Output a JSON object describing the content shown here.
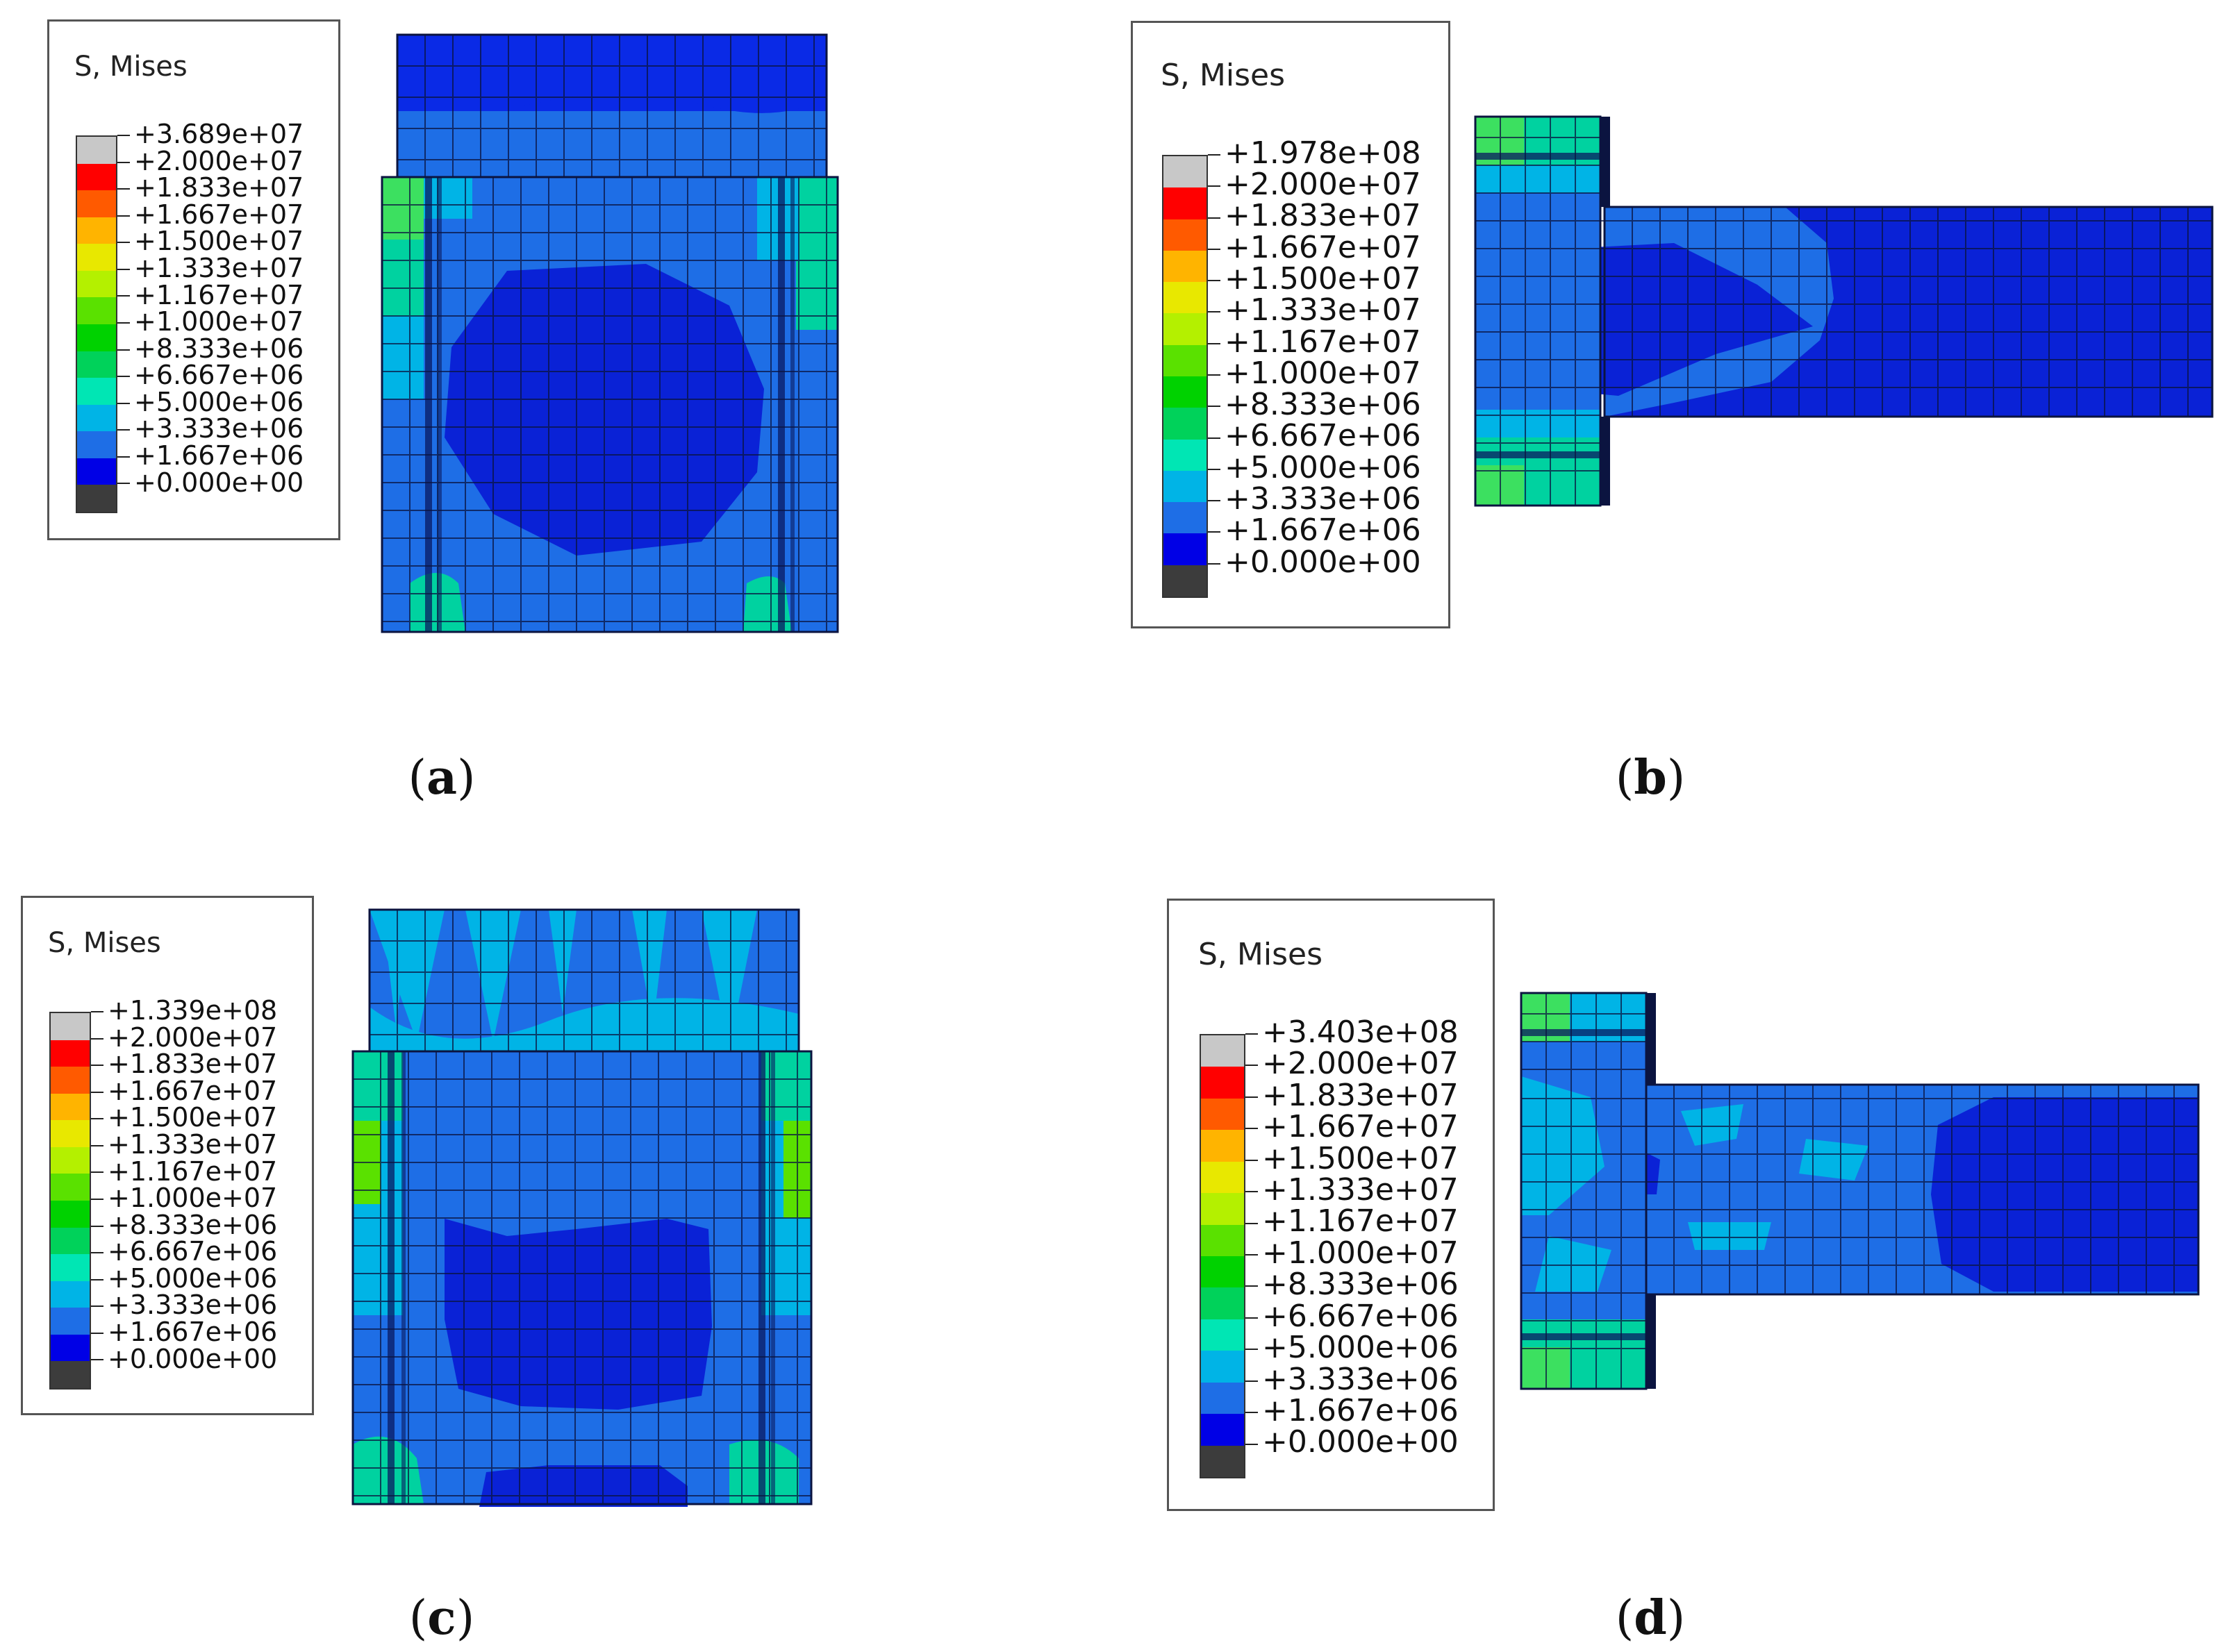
{
  "legend_title": "S, Mises",
  "colorbar_colors": [
    "#c8c8c8",
    "#ff0000",
    "#ff5a00",
    "#ffb400",
    "#e8e800",
    "#b4f000",
    "#5ae100",
    "#00d200",
    "#00d25a",
    "#00e6b4",
    "#00b4e6",
    "#1e6ee6",
    "#0000e6",
    "#3c3c3c"
  ],
  "panels": [
    {
      "id": "a",
      "caption": "a",
      "legend_ticks": [
        "+3.689e+07",
        "+2.000e+07",
        "+1.833e+07",
        "+1.667e+07",
        "+1.500e+07",
        "+1.333e+07",
        "+1.167e+07",
        "+1.000e+07",
        "+8.333e+06",
        "+6.667e+06",
        "+5.000e+06",
        "+3.333e+06",
        "+1.667e+06",
        "+0.000e+00"
      ]
    },
    {
      "id": "b",
      "caption": "b",
      "legend_ticks": [
        "+1.978e+08",
        "+2.000e+07",
        "+1.833e+07",
        "+1.667e+07",
        "+1.500e+07",
        "+1.333e+07",
        "+1.167e+07",
        "+1.000e+07",
        "+8.333e+06",
        "+6.667e+06",
        "+5.000e+06",
        "+3.333e+06",
        "+1.667e+06",
        "+0.000e+00"
      ]
    },
    {
      "id": "c",
      "caption": "c",
      "legend_ticks": [
        "+1.339e+08",
        "+2.000e+07",
        "+1.833e+07",
        "+1.667e+07",
        "+1.500e+07",
        "+1.333e+07",
        "+1.167e+07",
        "+1.000e+07",
        "+8.333e+06",
        "+6.667e+06",
        "+5.000e+06",
        "+3.333e+06",
        "+1.667e+06",
        "+0.000e+00"
      ]
    },
    {
      "id": "d",
      "caption": "d",
      "legend_ticks": [
        "+3.403e+08",
        "+2.000e+07",
        "+1.833e+07",
        "+1.667e+07",
        "+1.500e+07",
        "+1.333e+07",
        "+1.167e+07",
        "+1.000e+07",
        "+8.333e+06",
        "+6.667e+06",
        "+5.000e+06",
        "+3.333e+06",
        "+1.667e+06",
        "+0.000e+00"
      ]
    }
  ]
}
